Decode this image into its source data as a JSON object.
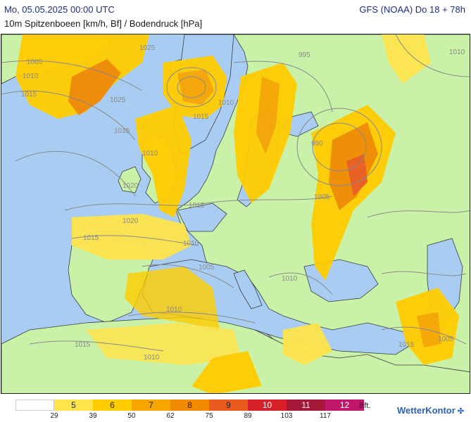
{
  "header": {
    "datetime": "Mo, 05.05.2025 00:00 UTC",
    "model_run": "GFS (NOAA) Do 18 + 78h",
    "subtitle": "10m Spitzenboeen [km/h, Bf] / Bodendruck [hPa]"
  },
  "map": {
    "isobar_labels": [
      "1005",
      "1010",
      "1015",
      "1025",
      "1010",
      "1015",
      "995",
      "1010",
      "1025",
      "1015",
      "1010",
      "990",
      "1020",
      "1020",
      "1015",
      "1015",
      "1005",
      "1010",
      "1005",
      "1010",
      "1010",
      "1015",
      "1010",
      "1015",
      "1005"
    ]
  },
  "legend": {
    "bft_values": [
      "",
      "5",
      "6",
      "7",
      "8",
      "9",
      "10",
      "11",
      "12"
    ],
    "kmh_ticks": [
      "29",
      "39",
      "50",
      "62",
      "75",
      "89",
      "103",
      "117"
    ],
    "colors": [
      "#ffffff",
      "#ffe44d",
      "#ffcc00",
      "#f7a600",
      "#f28a00",
      "#ea5a1f",
      "#d8202a",
      "#a6183a",
      "#c0166e"
    ],
    "unit_label": "Bft."
  },
  "branding": {
    "name": "WetterKontor",
    "icon": "wind-turbine-icon"
  }
}
